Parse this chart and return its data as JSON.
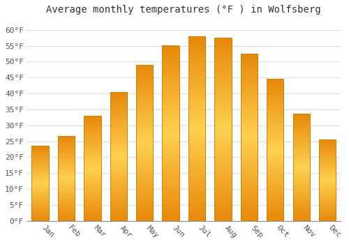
{
  "title": "Average monthly temperatures (°F ) in Wolfsberg",
  "months": [
    "Jan",
    "Feb",
    "Mar",
    "Apr",
    "May",
    "Jun",
    "Jul",
    "Aug",
    "Sep",
    "Oct",
    "Nov",
    "Dec"
  ],
  "values": [
    23.5,
    26.5,
    33.0,
    40.5,
    49.0,
    55.0,
    58.0,
    57.5,
    52.5,
    44.5,
    33.5,
    25.5
  ],
  "bar_color_top": "#FFC93C",
  "bar_color_bottom": "#F5A623",
  "bar_edge_color": "#C8860A",
  "background_color": "#ffffff",
  "grid_color": "#dddddd",
  "ylim": [
    0,
    63
  ],
  "yticks": [
    0,
    5,
    10,
    15,
    20,
    25,
    30,
    35,
    40,
    45,
    50,
    55,
    60
  ],
  "title_fontsize": 10,
  "tick_fontsize": 8,
  "font_family": "monospace",
  "xlabel_rotation": -45
}
